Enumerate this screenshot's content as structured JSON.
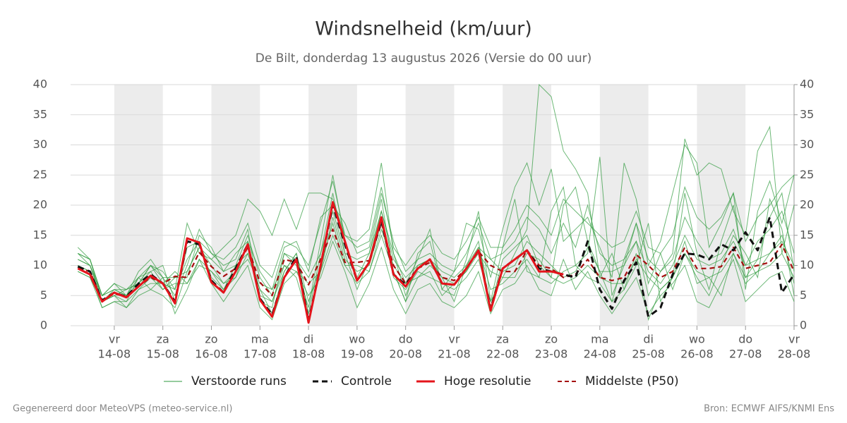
{
  "chart_data": {
    "type": "line",
    "title": "Windsnelheid (km/uur)",
    "subtitle": "De Bilt, donderdag 13 augustus 2026 (Versie do 00 uur)",
    "x": [
      13.25,
      13.5,
      13.75,
      14,
      14.25,
      14.5,
      14.75,
      15,
      15.25,
      15.5,
      15.75,
      16,
      16.25,
      16.5,
      16.75,
      17,
      17.25,
      17.5,
      17.75,
      18,
      18.25,
      18.5,
      18.75,
      19,
      19.25,
      19.5,
      19.75,
      20,
      20.25,
      20.5,
      20.75,
      21,
      21.25,
      21.5,
      21.75,
      22,
      22.25,
      22.5,
      22.75,
      23,
      23.25,
      23.5,
      23.75,
      24,
      24.25,
      24.5,
      24.75,
      25,
      25.25,
      25.5,
      25.75,
      26,
      26.25,
      26.5,
      26.75,
      27,
      27.25,
      27.5,
      27.75,
      28
    ],
    "xlim": [
      13.1,
      28
    ],
    "xticks": [
      {
        "value": 14,
        "label": "14-08",
        "weekday": "vr"
      },
      {
        "value": 15,
        "label": "15-08",
        "weekday": "za"
      },
      {
        "value": 16,
        "label": "16-08",
        "weekday": "zo"
      },
      {
        "value": 17,
        "label": "17-08",
        "weekday": "ma"
      },
      {
        "value": 18,
        "label": "18-08",
        "weekday": "di"
      },
      {
        "value": 19,
        "label": "19-08",
        "weekday": "wo"
      },
      {
        "value": 20,
        "label": "20-08",
        "weekday": "do"
      },
      {
        "value": 21,
        "label": "21-08",
        "weekday": "vr"
      },
      {
        "value": 22,
        "label": "22-08",
        "weekday": "za"
      },
      {
        "value": 23,
        "label": "23-08",
        "weekday": "zo"
      },
      {
        "value": 24,
        "label": "24-08",
        "weekday": "ma"
      },
      {
        "value": 25,
        "label": "25-08",
        "weekday": "di"
      },
      {
        "value": 26,
        "label": "26-08",
        "weekday": "wo"
      },
      {
        "value": 27,
        "label": "27-08",
        "weekday": "do"
      },
      {
        "value": 28,
        "label": "28-08",
        "weekday": "vr"
      }
    ],
    "ylim": [
      0,
      40
    ],
    "yticks": [
      0,
      5,
      10,
      15,
      20,
      25,
      30,
      35,
      40
    ],
    "y2lim": [
      0,
      40
    ],
    "y2ticks": [
      0,
      5,
      10,
      15,
      20,
      25,
      30,
      35,
      40
    ],
    "grid": true,
    "series": [
      {
        "name": "Verstoorde runs",
        "color": "#2e9a3c",
        "members": [
          [
            13,
            11,
            5,
            6,
            5,
            9,
            11,
            8,
            5,
            10,
            16,
            12,
            10,
            11,
            16,
            4,
            3,
            12,
            10,
            3,
            14,
            25,
            14,
            8,
            12,
            21,
            9,
            4,
            12,
            14,
            6,
            5,
            11,
            19,
            4,
            8,
            12,
            16,
            40,
            38,
            29,
            26,
            22,
            8,
            12,
            6,
            10,
            17,
            4,
            8,
            22,
            12,
            6,
            14,
            20,
            8,
            11,
            18,
            22,
            9
          ],
          [
            12,
            10,
            4,
            5,
            6,
            7,
            9,
            10,
            4,
            13,
            14,
            8,
            6,
            10,
            12,
            6,
            2,
            9,
            12,
            2,
            12,
            22,
            12,
            6,
            11,
            19,
            12,
            5,
            10,
            11,
            8,
            4,
            10,
            14,
            3,
            11,
            13,
            15,
            10,
            8,
            20,
            23,
            14,
            9,
            4,
            11,
            14,
            5,
            9,
            12,
            31,
            25,
            27,
            26,
            19,
            15,
            29,
            33,
            12,
            20
          ],
          [
            10,
            9,
            3,
            4,
            4,
            8,
            6,
            5,
            3,
            9,
            13,
            10,
            7,
            8,
            14,
            5,
            4,
            10,
            8,
            1,
            9,
            18,
            11,
            9,
            10,
            17,
            8,
            6,
            9,
            8,
            7,
            6,
            8,
            11,
            4,
            13,
            21,
            9,
            8,
            19,
            23,
            10,
            12,
            28,
            5,
            10,
            17,
            7,
            12,
            6,
            12,
            8,
            5,
            10,
            15,
            12,
            8,
            21,
            16,
            5
          ],
          [
            11,
            10,
            5,
            7,
            5,
            7,
            10,
            7,
            6,
            17,
            12,
            11,
            13,
            15,
            21,
            19,
            15,
            21,
            16,
            22,
            22,
            21,
            15,
            14,
            16,
            27,
            12,
            7,
            11,
            16,
            6,
            9,
            17,
            16,
            8,
            16,
            23,
            27,
            20,
            26,
            14,
            16,
            18,
            13,
            8,
            27,
            21,
            10,
            14,
            22,
            30,
            27,
            13,
            17,
            22,
            6,
            19,
            24,
            17,
            25
          ],
          [
            9,
            8,
            3,
            4,
            3,
            5,
            6,
            8,
            2,
            6,
            11,
            7,
            4,
            7,
            10,
            3,
            1,
            7,
            9,
            5,
            8,
            14,
            9,
            3,
            7,
            13,
            6,
            2,
            6,
            7,
            4,
            3,
            5,
            9,
            2,
            6,
            7,
            10,
            6,
            5,
            11,
            6,
            9,
            5,
            2,
            5,
            8,
            2,
            5,
            7,
            10,
            4,
            3,
            7,
            11,
            4,
            6,
            8,
            9,
            4
          ],
          [
            12,
            11,
            4,
            6,
            5,
            8,
            9,
            6,
            8,
            8,
            15,
            13,
            9,
            12,
            14,
            9,
            6,
            13,
            14,
            9,
            18,
            20,
            17,
            12,
            13,
            22,
            14,
            9,
            11,
            12,
            10,
            9,
            12,
            17,
            11,
            12,
            14,
            18,
            16,
            12,
            17,
            13,
            20,
            12,
            10,
            11,
            17,
            11,
            9,
            11,
            18,
            14,
            11,
            12,
            16,
            10,
            14,
            16,
            19,
            12
          ],
          [
            10,
            9,
            4,
            5,
            4,
            6,
            8,
            6,
            7,
            7,
            10,
            9,
            6,
            8,
            12,
            6,
            4,
            9,
            12,
            4,
            10,
            17,
            10,
            7,
            9,
            15,
            9,
            4,
            8,
            9,
            5,
            7,
            9,
            13,
            6,
            7,
            9,
            11,
            8,
            7,
            9,
            10,
            8,
            7,
            4,
            6,
            12,
            1,
            6,
            8,
            14,
            7,
            8,
            5,
            12,
            7,
            9,
            12,
            15,
            7
          ],
          [
            11,
            10,
            5,
            6,
            6,
            7,
            10,
            8,
            8,
            9,
            13,
            11,
            9,
            10,
            15,
            8,
            5,
            12,
            11,
            8,
            12,
            19,
            12,
            11,
            12,
            19,
            11,
            8,
            10,
            11,
            9,
            8,
            10,
            13,
            11,
            9,
            10,
            14,
            12,
            10,
            8,
            9,
            13,
            9,
            9,
            10,
            14,
            9,
            7,
            10,
            15,
            11,
            10,
            11,
            14,
            10,
            11,
            12,
            14,
            10
          ],
          [
            9,
            8,
            4,
            5,
            3,
            6,
            7,
            7,
            9,
            7,
            11,
            9,
            7,
            9,
            11,
            7,
            6,
            10,
            9,
            7,
            9,
            15,
            10,
            10,
            9,
            16,
            10,
            7,
            8,
            10,
            8,
            7,
            9,
            12,
            9,
            8,
            8,
            12,
            11,
            8,
            7,
            8,
            10,
            8,
            7,
            7,
            11,
            8,
            6,
            8,
            12,
            9,
            8,
            9,
            12,
            8,
            9,
            10,
            12,
            8
          ],
          [
            12,
            11,
            5,
            7,
            6,
            8,
            10,
            9,
            6,
            11,
            14,
            12,
            11,
            13,
            17,
            10,
            8,
            14,
            13,
            10,
            17,
            24,
            15,
            13,
            14,
            23,
            13,
            10,
            13,
            15,
            12,
            11,
            14,
            18,
            13,
            13,
            16,
            20,
            18,
            15,
            21,
            19,
            17,
            15,
            13,
            14,
            19,
            13,
            12,
            15,
            23,
            18,
            16,
            18,
            22,
            14,
            18,
            20,
            23,
            25
          ]
        ]
      },
      {
        "name": "Controle",
        "color": "#111111",
        "dash": true,
        "values": [
          9.8,
          9,
          4.2,
          5.5,
          4.8,
          7,
          8.5,
          7,
          4,
          14,
          13.5,
          7.5,
          5.5,
          9.5,
          13.5,
          4.5,
          1.8,
          8,
          11.5,
          0.8,
          10,
          20,
          13.5,
          7.5,
          10.5,
          17.5,
          8.5,
          6.8,
          9.5,
          11,
          7,
          6.8,
          9.5,
          12.5,
          2.8,
          9.5,
          11,
          12.5,
          9.5,
          9,
          8.5,
          8,
          14,
          6,
          2.8,
          7.5,
          10.5,
          1.5,
          3,
          8.5,
          12,
          11.8,
          11,
          13.5,
          12.5,
          15.5,
          12.5,
          18,
          5.5,
          8.5
        ]
      },
      {
        "name": "Hoge resolutie",
        "color": "#e4141b",
        "dash": false,
        "values": [
          9.5,
          8.5,
          4,
          5.5,
          4.7,
          6.5,
          8.3,
          7,
          3.7,
          14.5,
          13.8,
          7.2,
          5.5,
          9,
          13.5,
          4.3,
          1.5,
          8,
          11,
          0.5,
          10,
          20.5,
          14,
          7.5,
          10.5,
          18,
          8.5,
          6.5,
          9.5,
          11,
          7,
          6.8,
          9.5,
          12.5,
          2.5,
          9.5,
          11,
          12.5,
          9,
          9,
          8.5,
          null,
          null,
          null,
          null,
          null,
          null,
          null,
          null,
          null,
          null,
          null,
          null,
          null,
          null,
          null,
          null,
          null,
          null,
          null
        ]
      },
      {
        "name": "Middelste (P50)",
        "color": "#a50f0f",
        "dash": true,
        "values": [
          9.5,
          9,
          4.2,
          5.3,
          4.8,
          6.5,
          8,
          7,
          8.2,
          8,
          12.2,
          9.8,
          8.2,
          9.5,
          13,
          7.2,
          5,
          11,
          10.5,
          6.8,
          11,
          16,
          10.5,
          10.5,
          10.8,
          17,
          10,
          7,
          9.5,
          10.5,
          8,
          7.5,
          9.5,
          12.3,
          10,
          9,
          9,
          12.5,
          10,
          9.5,
          8,
          8.5,
          11,
          8,
          7.5,
          8,
          11.8,
          10,
          8,
          9,
          13,
          9.5,
          9.5,
          9.8,
          13,
          9.5,
          10,
          10.5,
          13.5,
          9
        ]
      }
    ]
  },
  "footer": {
    "left": "Gegenereerd door MeteoVPS (meteo-service.nl)",
    "right": "Bron: ECMWF AIFS/KNMI Ens"
  }
}
